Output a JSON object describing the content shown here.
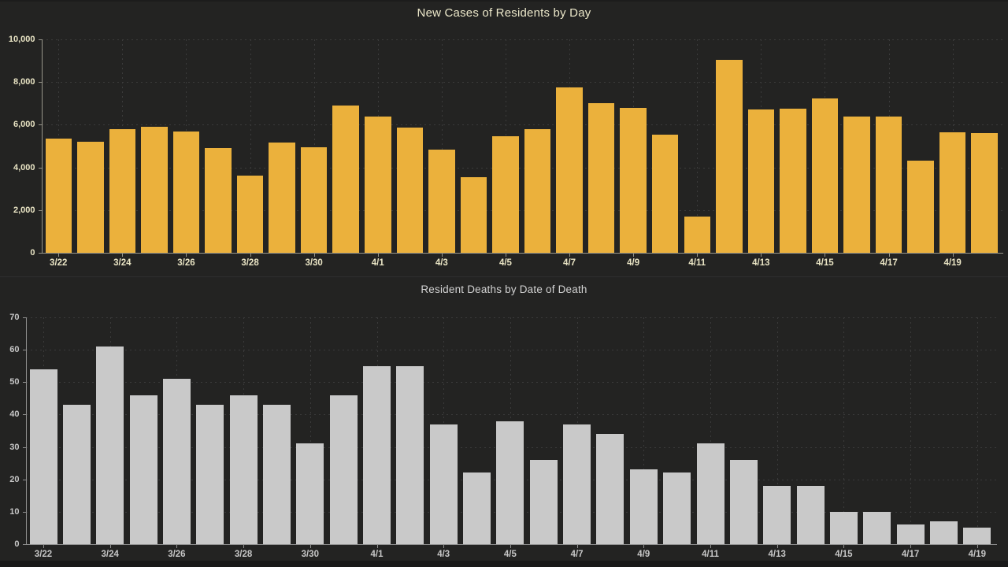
{
  "app": {
    "background": "#232322",
    "divider_color": "#3a3a3a",
    "bottom_strip_color": "#191919"
  },
  "chart_data": [
    {
      "type": "bar",
      "title": "New Cases of Residents by Day",
      "title_color": "#ece8ca",
      "bar_color": "#ebb13c",
      "text_color": "#e9e4c4",
      "axis_color": "#97958a",
      "grid_color": "#3b3b3b",
      "grid": true,
      "legend": "none",
      "ylim": [
        0,
        10000
      ],
      "ytick_interval": 2000,
      "ytick_labels": [
        "0",
        "2,000",
        "4,000",
        "6,000",
        "8,000",
        "10,000"
      ],
      "xlabel_every": 2,
      "categories": [
        "3/22",
        "3/23",
        "3/24",
        "3/25",
        "3/26",
        "3/27",
        "3/28",
        "3/29",
        "3/30",
        "3/31",
        "4/1",
        "4/2",
        "4/3",
        "4/4",
        "4/5",
        "4/6",
        "4/7",
        "4/8",
        "4/9",
        "4/10",
        "4/11",
        "4/12",
        "4/13",
        "4/14",
        "4/15",
        "4/16",
        "4/17",
        "4/18",
        "4/19",
        "4/20"
      ],
      "values": [
        5350,
        5200,
        5800,
        5900,
        5700,
        4900,
        3600,
        5150,
        4950,
        6900,
        6400,
        5850,
        4850,
        3550,
        5450,
        5800,
        7750,
        7000,
        6800,
        5550,
        1700,
        9050,
        6700,
        6750,
        7250,
        6400,
        6400,
        4300,
        5650,
        5600
      ]
    },
    {
      "type": "bar",
      "title": "Resident Deaths by Date of Death",
      "title_color": "#d2d2d2",
      "bar_color": "#c9c9c9",
      "text_color": "#c6c6c6",
      "axis_color": "#909090",
      "grid_color": "#3b3b3b",
      "grid": true,
      "legend": "none",
      "ylim": [
        0,
        70
      ],
      "ytick_interval": 10,
      "ytick_labels": [
        "0",
        "10",
        "20",
        "30",
        "40",
        "50",
        "60",
        "70"
      ],
      "xlabel_every": 2,
      "categories": [
        "3/22",
        "3/23",
        "3/24",
        "3/25",
        "3/26",
        "3/27",
        "3/28",
        "3/29",
        "3/30",
        "3/31",
        "4/1",
        "4/2",
        "4/3",
        "4/4",
        "4/5",
        "4/6",
        "4/7",
        "4/8",
        "4/9",
        "4/10",
        "4/11",
        "4/12",
        "4/13",
        "4/14",
        "4/15",
        "4/16",
        "4/17",
        "4/18",
        "4/19"
      ],
      "values": [
        54,
        43,
        61,
        46,
        51,
        43,
        46,
        43,
        31,
        46,
        55,
        55,
        37,
        22,
        38,
        26,
        37,
        34,
        23,
        22,
        31,
        26,
        18,
        18,
        10,
        10,
        6,
        7,
        5
      ]
    }
  ]
}
